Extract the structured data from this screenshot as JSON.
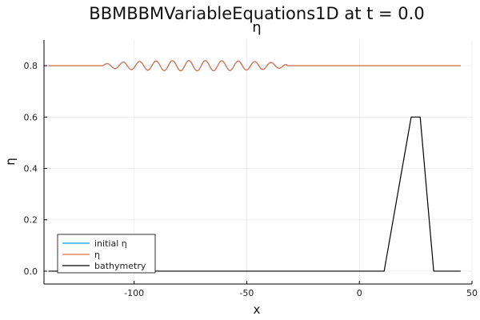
{
  "chart_data": {
    "type": "line",
    "title": "BBMBBMVariableEquations1D at t = 0.0",
    "subtitle": "η",
    "xlabel": "x",
    "ylabel": "η",
    "xlim": [
      -140,
      50
    ],
    "ylim": [
      -0.05,
      0.9
    ],
    "xticks": [
      -100,
      -50,
      0,
      50
    ],
    "xtick_labels": [
      "-100",
      "-50",
      "0",
      "50"
    ],
    "yticks": [
      0.0,
      0.2,
      0.4,
      0.6,
      0.8
    ],
    "ytick_labels": [
      "0.0",
      "0.2",
      "0.4",
      "0.6",
      "0.8"
    ],
    "grid": true,
    "legend_position": "bottom-left",
    "series": [
      {
        "name": "initial η",
        "color": "#009AFA",
        "style": "wave-packet",
        "x_range": [
          -138,
          45
        ],
        "base": 0.8,
        "packet_range": [
          -114,
          -32
        ],
        "amplitude": 0.02,
        "wavelength": 7.3
      },
      {
        "name": "η",
        "color": "#E26F46",
        "style": "wave-packet",
        "x_range": [
          -138,
          45
        ],
        "base": 0.8,
        "packet_range": [
          -114,
          -32
        ],
        "amplitude": 0.02,
        "wavelength": 7.3
      },
      {
        "name": "bathymetry",
        "color": "#000000",
        "style": "polyline",
        "x": [
          -138,
          11,
          23,
          27,
          33,
          45
        ],
        "y": [
          0.0,
          0.0,
          0.6,
          0.6,
          0.0,
          0.0
        ]
      }
    ]
  }
}
